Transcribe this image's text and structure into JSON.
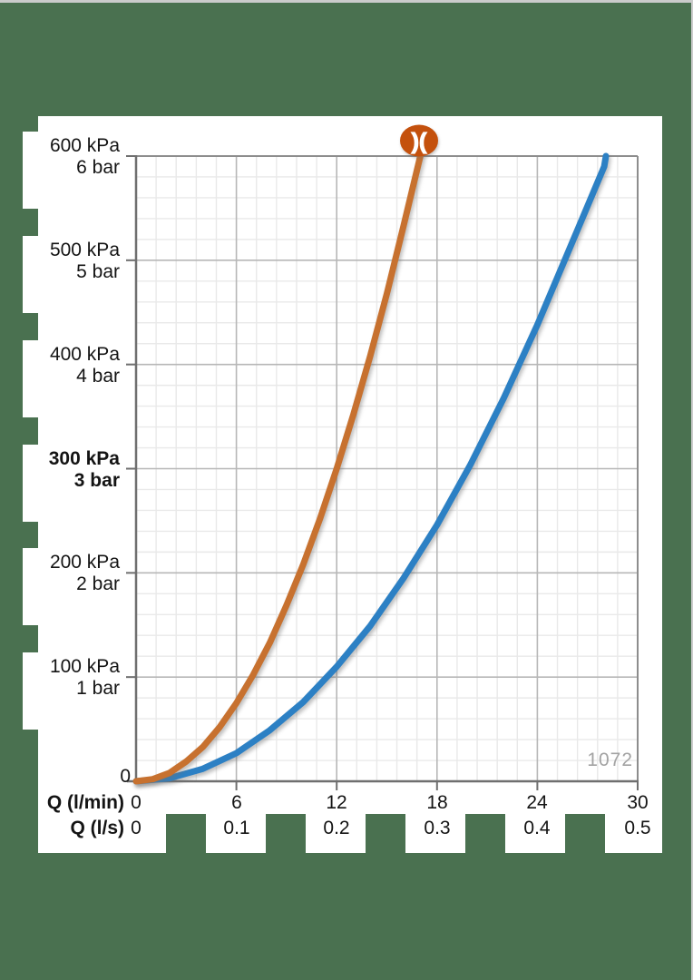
{
  "window": {
    "bg_color": "#4a7150",
    "panel_color": "#ffffff",
    "edge_color": "#cbcbcb"
  },
  "logo": {
    "glyph": ")(",
    "bg_color": "#c4510d",
    "fg_color": "#ffffff"
  },
  "chart_data": {
    "type": "line",
    "title": "",
    "x_axis": {
      "primary_label": "Q (l/min)",
      "secondary_label": "Q (l/s)",
      "primary_ticks": [
        "0",
        "6",
        "12",
        "18",
        "24",
        "30"
      ],
      "secondary_ticks": [
        "0",
        "0.1",
        "0.2",
        "0.3",
        "0.4",
        "0.5"
      ],
      "range_lmin": [
        0,
        30
      ],
      "minor_cells": 25,
      "major_every": 5
    },
    "y_axis": {
      "origin_label": "0",
      "range_kpa": [
        0,
        600
      ],
      "minor_cells": 30,
      "major_every": 5,
      "ticks": [
        {
          "kpa_label": "600 kPa",
          "bar_label": "6 bar",
          "value": 600,
          "bold": false
        },
        {
          "kpa_label": "500 kPa",
          "bar_label": "5 bar",
          "value": 500,
          "bold": false
        },
        {
          "kpa_label": "400 kPa",
          "bar_label": "4 bar",
          "value": 400,
          "bold": false
        },
        {
          "kpa_label": "300 kPa",
          "bar_label": "3 bar",
          "value": 300,
          "bold": true
        },
        {
          "kpa_label": "200 kPa",
          "bar_label": "2 bar",
          "value": 200,
          "bold": false
        },
        {
          "kpa_label": "100 kPa",
          "bar_label": "1 bar",
          "value": 100,
          "bold": false
        }
      ]
    },
    "grid": {
      "minor_color": "#e9e9e9",
      "major_color": "#b7b7b7",
      "frame_color": "#8d8d8d",
      "axis_color": "#6f6f6f",
      "grid_on": true
    },
    "figure_number": "1072",
    "figure_number_color": "#a3a3a3",
    "series": [
      {
        "name": "curve-blue",
        "color": "#2c80c4",
        "points_lmin_kpa": [
          [
            0,
            0
          ],
          [
            2,
            3
          ],
          [
            4,
            12
          ],
          [
            6,
            27
          ],
          [
            8,
            49
          ],
          [
            10,
            76
          ],
          [
            12,
            110
          ],
          [
            14,
            149
          ],
          [
            16,
            195
          ],
          [
            18,
            246
          ],
          [
            20,
            304
          ],
          [
            22,
            368
          ],
          [
            24,
            438
          ],
          [
            26,
            514
          ],
          [
            28,
            590
          ],
          [
            28.1,
            600
          ]
        ]
      },
      {
        "name": "curve-orange",
        "color": "#c7712f",
        "points_lmin_kpa": [
          [
            0,
            0
          ],
          [
            1,
            2
          ],
          [
            2,
            8
          ],
          [
            3,
            19
          ],
          [
            4,
            33
          ],
          [
            5,
            52
          ],
          [
            6,
            75
          ],
          [
            7,
            102
          ],
          [
            8,
            133
          ],
          [
            9,
            169
          ],
          [
            10,
            208
          ],
          [
            11,
            252
          ],
          [
            12,
            300
          ],
          [
            13,
            352
          ],
          [
            14,
            408
          ],
          [
            15,
            468
          ],
          [
            16,
            533
          ],
          [
            17,
            600
          ]
        ]
      }
    ]
  }
}
